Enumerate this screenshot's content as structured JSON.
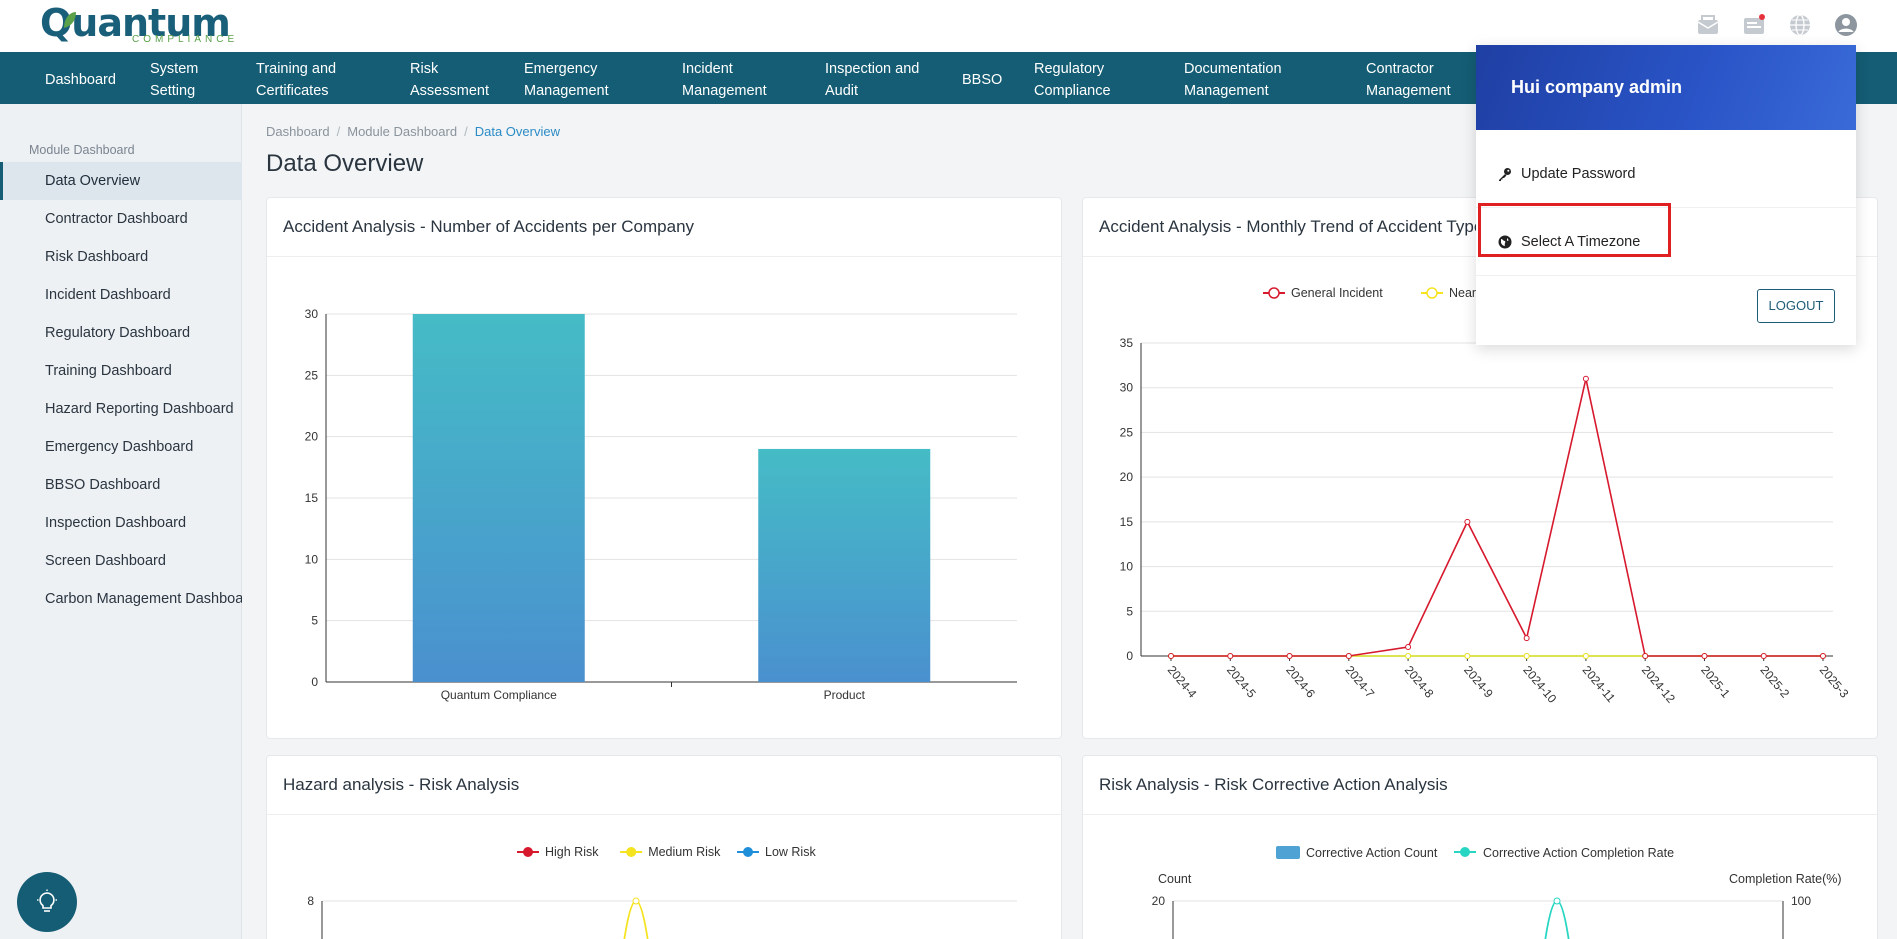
{
  "header": {
    "brand": "Quantum",
    "brand_sub": "COMPLIANCE",
    "icons": [
      "mail-icon",
      "notification-icon",
      "globe-icon",
      "user-icon"
    ]
  },
  "nav": {
    "items": [
      {
        "l1": "Dashboard",
        "l2": ""
      },
      {
        "l1": "System",
        "l2": "Setting"
      },
      {
        "l1": "Training and",
        "l2": "Certificates"
      },
      {
        "l1": "Risk",
        "l2": "Assessment"
      },
      {
        "l1": "Emergency",
        "l2": "Management"
      },
      {
        "l1": "Incident",
        "l2": "Management"
      },
      {
        "l1": "Inspection and",
        "l2": "Audit"
      },
      {
        "l1": "BBSO",
        "l2": ""
      },
      {
        "l1": "Regulatory",
        "l2": "Compliance"
      },
      {
        "l1": "Documentation",
        "l2": "Management"
      },
      {
        "l1": "Contractor",
        "l2": "Management"
      }
    ]
  },
  "sidebar": {
    "title": "Module Dashboard",
    "items": [
      "Data Overview",
      "Contractor Dashboard",
      "Risk Dashboard",
      "Incident Dashboard",
      "Regulatory Dashboard",
      "Training Dashboard",
      "Hazard Reporting Dashboard",
      "Emergency Dashboard",
      "BBSO Dashboard",
      "Inspection Dashboard",
      "Screen Dashboard",
      "Carbon Management Dashboard"
    ],
    "active_index": 0
  },
  "breadcrumb": [
    "Dashboard",
    "Module Dashboard",
    "Data Overview"
  ],
  "page_title": "Data Overview",
  "cards": {
    "c1_title": "Accident Analysis - Number of Accidents per Company",
    "c2_title": "Accident Analysis - Monthly Trend of Accident Types",
    "c3_title": "Hazard analysis - Risk Analysis",
    "c4_title": "Risk Analysis - Risk Corrective Action Analysis"
  },
  "user_menu": {
    "name": "Hui company admin",
    "update_password": "Update Password",
    "select_timezone": "Select A Timezone",
    "logout": "LOGOUT"
  },
  "colors": {
    "nav_bg": "#145d74",
    "accent_blue": "#2b8bc6",
    "highlight_red": "#e02020"
  },
  "chart_data": [
    {
      "type": "bar",
      "title": "Accident Analysis - Number of Accidents per Company",
      "categories": [
        "Quantum Compliance",
        "Product"
      ],
      "values": [
        30,
        19
      ],
      "ylim": [
        0,
        30
      ],
      "yticks": [
        0,
        5,
        10,
        15,
        20,
        25,
        30
      ]
    },
    {
      "type": "line",
      "title": "Accident Analysis - Monthly Trend of Accident Types",
      "x": [
        "2024-4",
        "2024-5",
        "2024-6",
        "2024-7",
        "2024-8",
        "2024-9",
        "2024-10",
        "2024-11",
        "2024-12",
        "2025-1",
        "2025-2",
        "2025-3"
      ],
      "series": [
        {
          "name": "General Incident",
          "color": "#d7192e",
          "values": [
            0,
            0,
            0,
            0,
            1,
            15,
            2,
            31,
            0,
            0,
            0,
            0
          ]
        },
        {
          "name": "Near Mis",
          "color": "#f5e320",
          "values": [
            0,
            0,
            0,
            0,
            0,
            0,
            0,
            0,
            0,
            0,
            0,
            0
          ]
        },
        {
          "name": "",
          "color": "#2fc6cf",
          "values": [
            0,
            0,
            0,
            0,
            0,
            0,
            0,
            0,
            0,
            0,
            0,
            0
          ]
        }
      ],
      "ylim": [
        0,
        35
      ],
      "yticks": [
        0,
        5,
        10,
        15,
        20,
        25,
        30,
        35
      ]
    },
    {
      "type": "line",
      "title": "Hazard analysis - Risk Analysis",
      "legend": [
        {
          "name": "High Risk",
          "color": "#d7192e"
        },
        {
          "name": "Medium Risk",
          "color": "#f5e320"
        },
        {
          "name": "Low Risk",
          "color": "#1f8fd9"
        }
      ],
      "ytick_top": 8
    },
    {
      "type": "bar",
      "title": "Risk Analysis - Risk Corrective Action Analysis",
      "legend": [
        {
          "name": "Corrective Action Count",
          "color": "#4fa3d4"
        },
        {
          "name": "Corrective Action Completion Rate",
          "color": "#26d6c2"
        }
      ],
      "ylabel_left": "Count",
      "ylabel_right": "Completion Rate(%)",
      "ytick_left_top": 20,
      "ytick_right_top": 100
    }
  ]
}
